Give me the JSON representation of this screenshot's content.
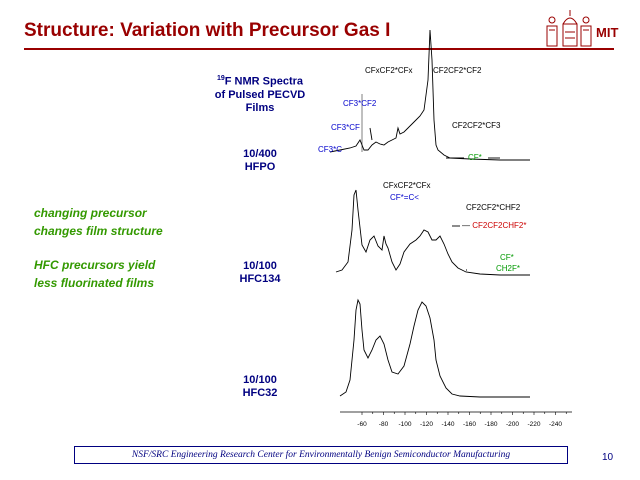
{
  "slide": {
    "title": "Structure: Variation with Precursor Gas I",
    "logo_text": "MIT",
    "page_number": "10",
    "footer": "NSF/SRC Engineering Research Center for Environmentally Benign Semiconductor Manufacturing"
  },
  "nmr_label": {
    "line1_sup": "19",
    "line1": "F NMR Spectra",
    "line2": "of Pulsed PECVD",
    "line3": "Films"
  },
  "samples": [
    {
      "ratio": "10/400",
      "name": "HFPO"
    },
    {
      "ratio": "10/100",
      "name": "HFC134"
    },
    {
      "ratio": "10/100",
      "name": "HFC32"
    }
  ],
  "notes": {
    "line1": "changing precursor",
    "line2": "changes film structure",
    "line3": "HFC precursors yield",
    "line4": "less fluorinated films"
  },
  "annotations": {
    "hfpo": {
      "cfxcf2cfx": "CFxCF2*CFx",
      "cf2cf2cf2": "CF2CF2*CF2",
      "cf3cf2": "CF3*CF2",
      "cf3cf": "CF3*CF",
      "cf2cf2cf3": "CF2CF2*CF3",
      "cf3c": "CF3*C",
      "cf": "CF*"
    },
    "hfc134": {
      "cfxcf2cfx": "CFxCF2*CFx",
      "cf_double": "CF*=C<",
      "cf2cf2chf2": "CF2CF2*CHF2",
      "cf2cf2chf2_red": "CF2CF2CHF2*",
      "cf": "CF*",
      "ch2f": "CH2F*"
    }
  },
  "axis": {
    "ticks": [
      "-60",
      "-80",
      "-100",
      "-120",
      "-140",
      "-160",
      "-180",
      "-200",
      "-220",
      "-240"
    ]
  },
  "colors": {
    "title": "#990000",
    "navy": "#000080",
    "green": "#339900"
  }
}
